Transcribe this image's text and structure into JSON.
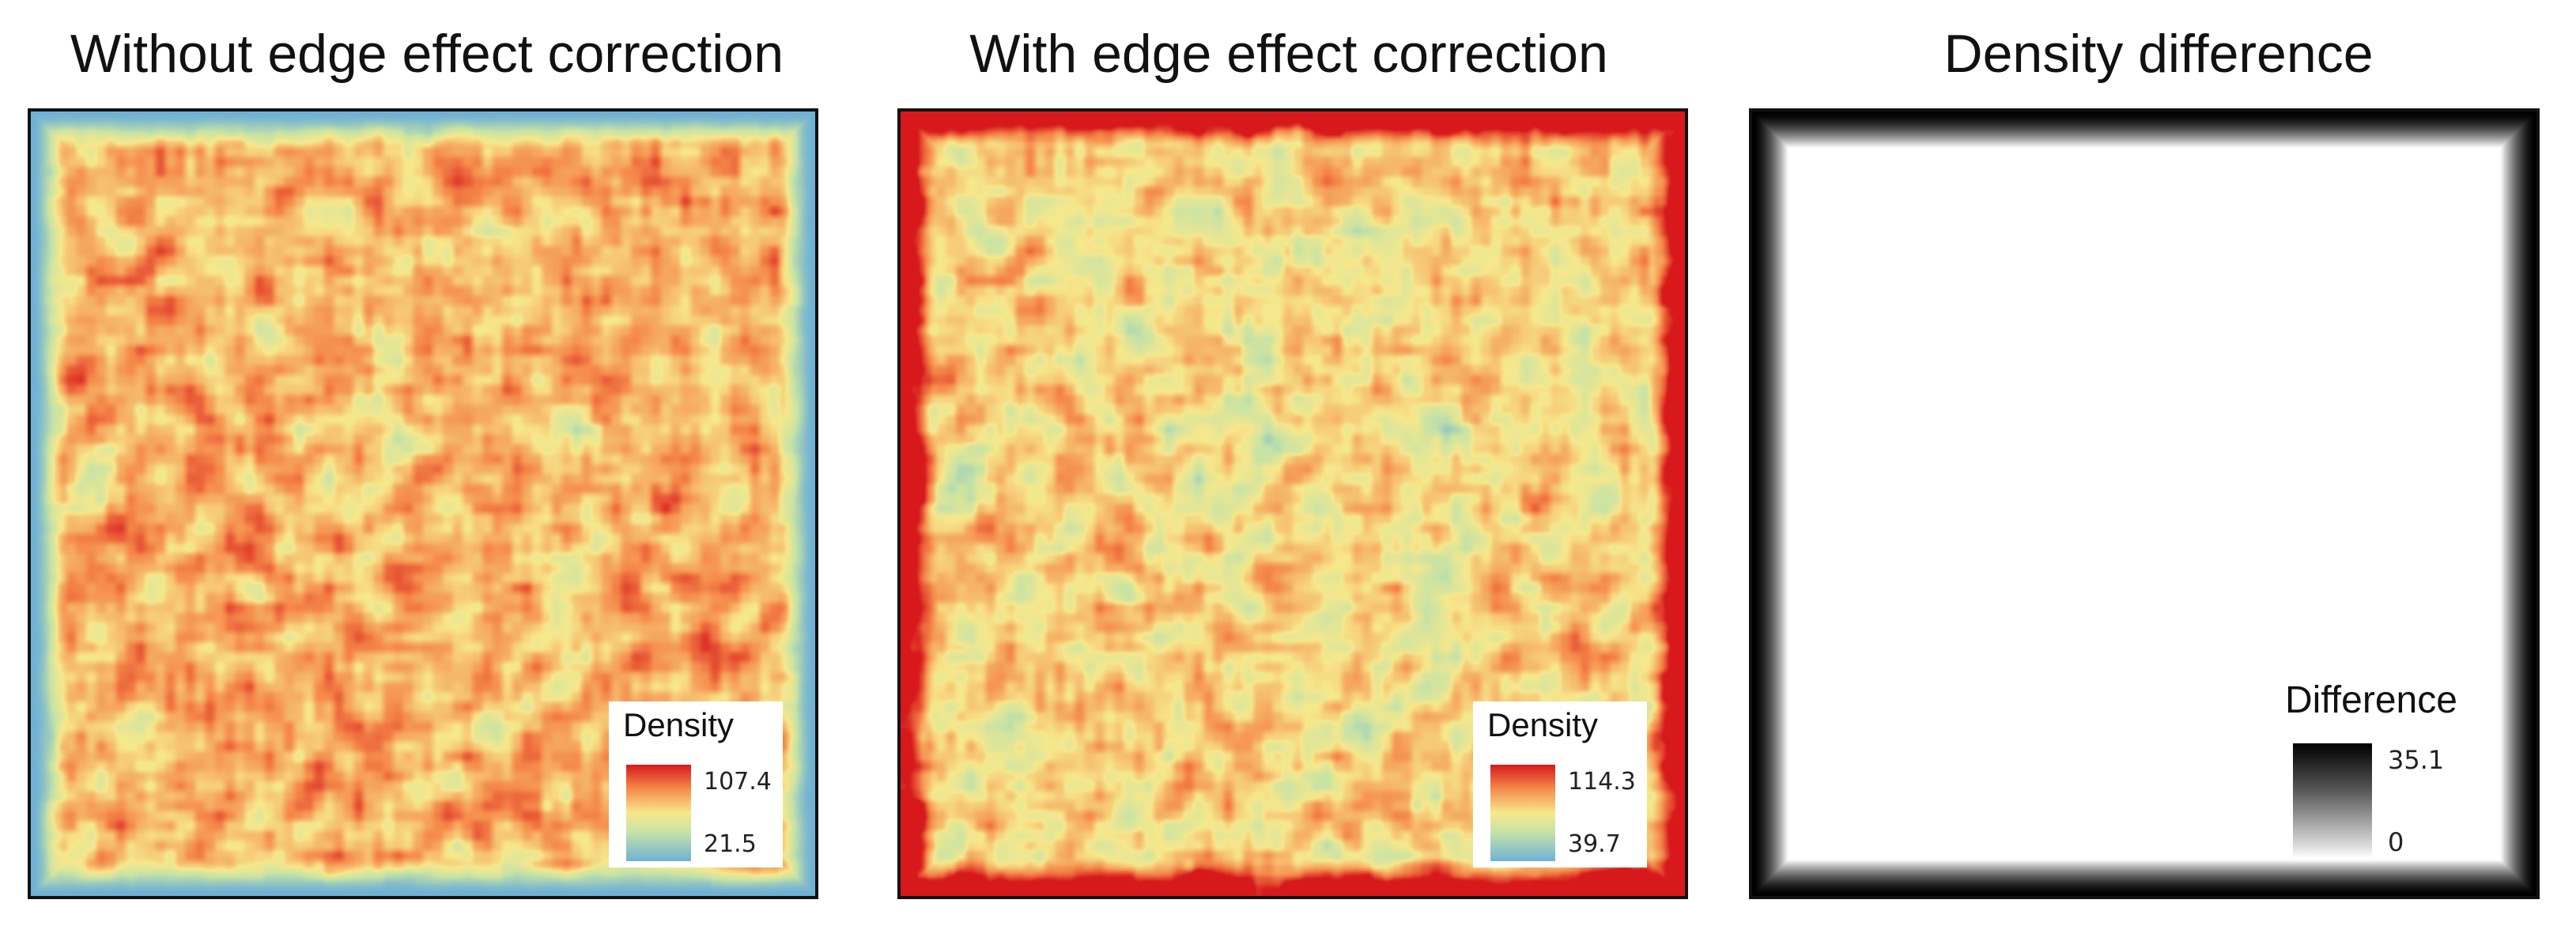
{
  "chart_data": [
    {
      "type": "heatmap",
      "title": "Without edge effect correction",
      "legend_title": "Density",
      "colorbar": {
        "min": 21.5,
        "max": 107.4,
        "min_label": "21.5",
        "max_label": "107.4"
      },
      "colors": [
        "#d7191c",
        "#f58a4b",
        "#f6e88d",
        "#c6e3a6",
        "#6fb1d6"
      ],
      "legend_position": "bottom-right"
    },
    {
      "type": "heatmap",
      "title": "With edge effect correction",
      "legend_title": "Density",
      "colorbar": {
        "min": 39.7,
        "max": 114.3,
        "min_label": "39.7",
        "max_label": "114.3"
      },
      "colors": [
        "#d7191c",
        "#f58a4b",
        "#f6e88d",
        "#c6e3a6",
        "#6fb1d6"
      ],
      "legend_position": "bottom-right"
    },
    {
      "type": "heatmap",
      "title": "Density difference",
      "legend_title": "Difference",
      "colorbar": {
        "min": 0,
        "max": 35.1,
        "min_label": "0",
        "max_label": "35.1"
      },
      "colors": [
        "#000000",
        "#ffffff"
      ],
      "legend_position": "bottom-right"
    }
  ]
}
